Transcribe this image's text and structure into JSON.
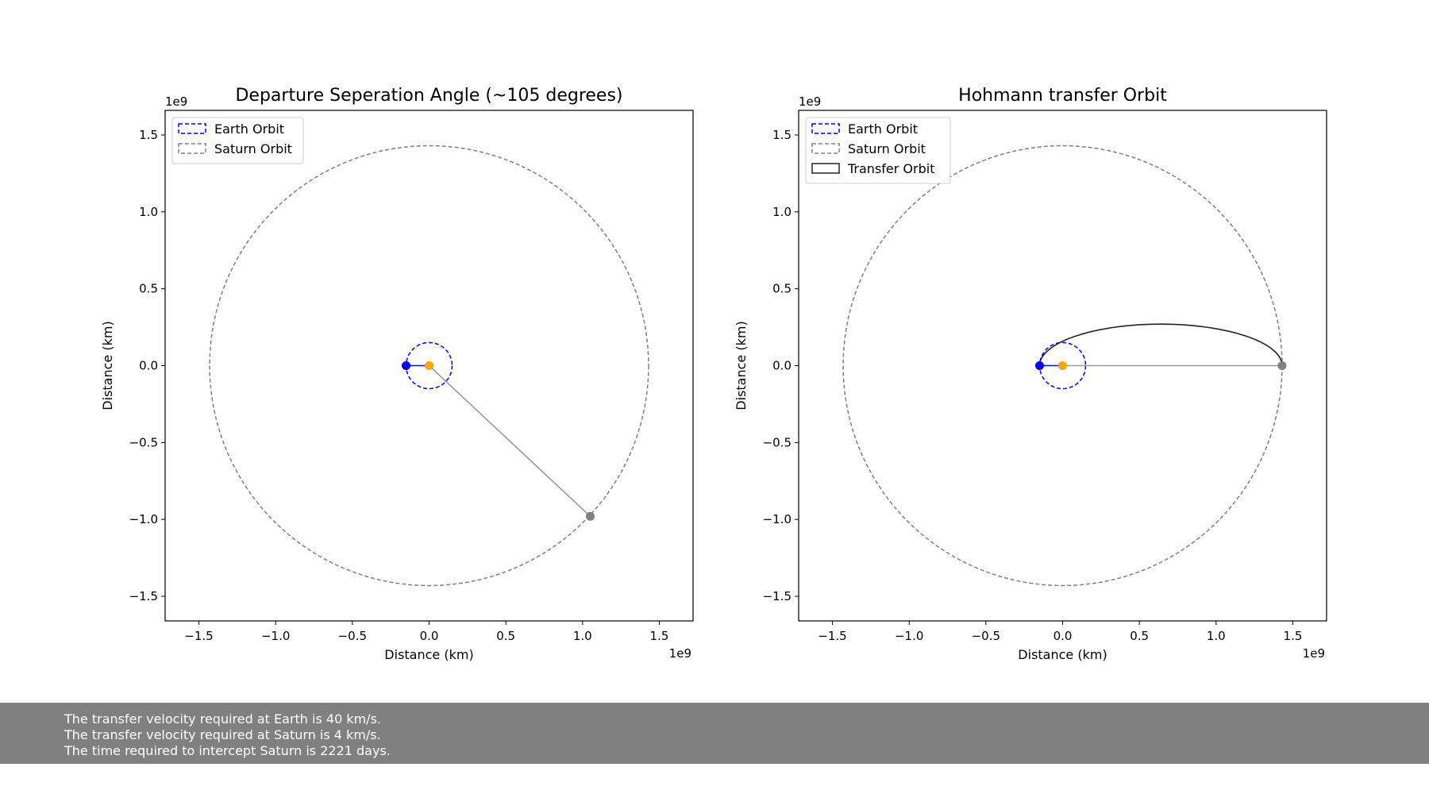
{
  "chart_data": [
    {
      "type": "scatter",
      "title": "Departure Seperation Angle (~105 degrees)",
      "xlabel": "Distance (km)",
      "ylabel": "Distance (km)",
      "xlim": [
        -1.72,
        1.72
      ],
      "ylim": [
        -1.66,
        1.66
      ],
      "axis_scale_label": "1e9",
      "x_ticks": [
        -1.5,
        -1.0,
        -0.5,
        0.0,
        0.5,
        1.0,
        1.5
      ],
      "y_ticks": [
        -1.5,
        -1.0,
        -0.5,
        0.0,
        0.5,
        1.0,
        1.5
      ],
      "x_tick_labels": [
        "−1.5",
        "−1.0",
        "−0.5",
        "0.0",
        "0.5",
        "1.0",
        "1.5"
      ],
      "y_tick_labels": [
        "−1.5",
        "−1.0",
        "−0.5",
        "0.0",
        "0.5",
        "1.0",
        "1.5"
      ],
      "grid": false,
      "legend_position": "top-left",
      "legend": [
        {
          "label": "Earth Orbit",
          "style": "dashed",
          "color": "#0000ff"
        },
        {
          "label": "Saturn Orbit",
          "style": "dashed",
          "color": "#808080"
        }
      ],
      "orbits": [
        {
          "radius": 0.15,
          "color": "#0000ff",
          "style": "dashed"
        },
        {
          "radius": 1.43,
          "color": "#808080",
          "style": "dashed"
        }
      ],
      "segments": [
        {
          "from": [
            0.0,
            0.0
          ],
          "to": [
            -0.15,
            0.0
          ],
          "color": "#0000ff"
        },
        {
          "from": [
            0.0,
            0.0
          ],
          "to": [
            1.05,
            -0.98
          ],
          "color": "#999999"
        }
      ],
      "points": [
        {
          "x": -0.15,
          "y": 0.0,
          "color": "#0000ff"
        },
        {
          "x": 0.0,
          "y": 0.0,
          "color": "#ffa500"
        },
        {
          "x": 1.05,
          "y": -0.98,
          "color": "#808080"
        }
      ]
    },
    {
      "type": "scatter",
      "title": "Hohmann transfer Orbit",
      "xlabel": "Distance (km)",
      "ylabel": "Distance (km)",
      "xlim": [
        -1.72,
        1.72
      ],
      "ylim": [
        -1.66,
        1.66
      ],
      "axis_scale_label": "1e9",
      "x_ticks": [
        -1.5,
        -1.0,
        -0.5,
        0.0,
        0.5,
        1.0,
        1.5
      ],
      "y_ticks": [
        -1.5,
        -1.0,
        -0.5,
        0.0,
        0.5,
        1.0,
        1.5
      ],
      "x_tick_labels": [
        "−1.5",
        "−1.0",
        "−0.5",
        "0.0",
        "0.5",
        "1.0",
        "1.5"
      ],
      "y_tick_labels": [
        "−1.5",
        "−1.0",
        "−0.5",
        "0.0",
        "0.5",
        "1.0",
        "1.5"
      ],
      "grid": false,
      "legend_position": "top-left",
      "legend": [
        {
          "label": "Earth Orbit",
          "style": "dashed",
          "color": "#0000ff"
        },
        {
          "label": "Saturn Orbit",
          "style": "dashed",
          "color": "#808080"
        },
        {
          "label": "Transfer Orbit",
          "style": "solid",
          "color": "#222222"
        }
      ],
      "orbits": [
        {
          "radius": 0.15,
          "color": "#0000ff",
          "style": "dashed"
        },
        {
          "radius": 1.43,
          "color": "#808080",
          "style": "dashed"
        }
      ],
      "transfer_orbit": {
        "center_x": 0.64,
        "semi_major": 0.79,
        "semi_minor": 0.27,
        "color": "#222222"
      },
      "segments": [
        {
          "from": [
            0.0,
            0.0
          ],
          "to": [
            -0.15,
            0.0
          ],
          "color": "#0000ff"
        },
        {
          "from": [
            0.0,
            0.0
          ],
          "to": [
            1.43,
            0.0
          ],
          "color": "#999999"
        }
      ],
      "points": [
        {
          "x": -0.15,
          "y": 0.0,
          "color": "#0000ff"
        },
        {
          "x": 0.0,
          "y": 0.0,
          "color": "#ffa500"
        },
        {
          "x": 1.43,
          "y": 0.0,
          "color": "#808080"
        }
      ]
    }
  ],
  "info_panel": {
    "lines": [
      "The transfer velocity required at Earth is 40 km/s.",
      "The transfer velocity required at Saturn is 4 km/s.",
      "The time required to intercept Saturn is 2221 days."
    ]
  }
}
